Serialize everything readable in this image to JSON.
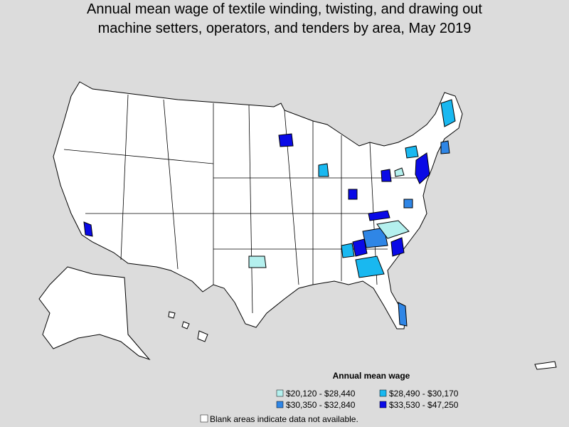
{
  "title_lines": [
    "Annual mean wage of textile winding, twisting, and drawing out",
    "machine setters, operators, and tenders by area, May 2019"
  ],
  "legend": {
    "title": "Annual mean wage",
    "items": [
      {
        "label": "$20,120 - $28,440",
        "color": "#b4f0ee"
      },
      {
        "label": "$28,490 - $30,170",
        "color": "#19b8f0"
      },
      {
        "label": "$30,350 - $32,840",
        "color": "#2f86e6"
      },
      {
        "label": "$33,530 - $47,250",
        "color": "#0a0ae6"
      }
    ]
  },
  "note": "Blank areas indicate data not available."
}
